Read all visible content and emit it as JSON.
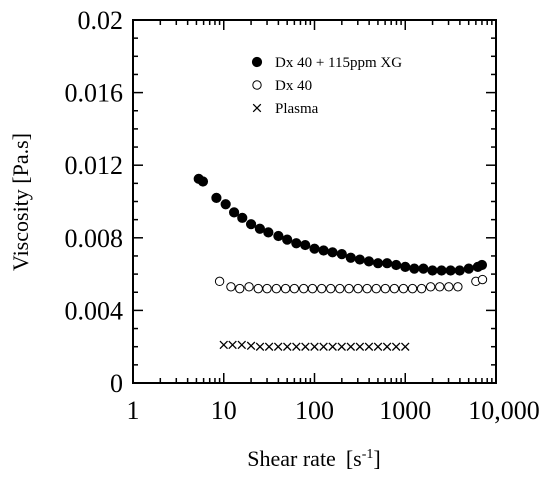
{
  "chart_data": {
    "type": "scatter",
    "xlabel": "Shear rate",
    "xunit_open": "[s",
    "xunit_sup": "-1",
    "xunit_close": "]",
    "ylabel": "Viscosity [Pa.s]",
    "xscale": "log",
    "xlim": [
      1,
      10000
    ],
    "ylim": [
      0,
      0.02
    ],
    "x_ticks": [
      1,
      10,
      100,
      1000,
      10000
    ],
    "x_tick_labels": [
      "1",
      "10",
      "100",
      "1000",
      "10,000"
    ],
    "y_ticks": [
      0,
      0.004,
      0.008,
      0.012,
      0.016,
      0.02
    ],
    "y_tick_labels": [
      "0",
      "0.004",
      "0.008",
      "0.012",
      "0.016",
      "0.02"
    ],
    "grid": false,
    "legend_position": "top-right",
    "series": [
      {
        "name": "Dx 40 + 115ppm XG",
        "marker": "filled-circle",
        "color": "#000000",
        "points": [
          [
            5.3,
            0.01125
          ],
          [
            5.9,
            0.0111
          ],
          [
            8.3,
            0.0102
          ],
          [
            10.5,
            0.00985
          ],
          [
            13.0,
            0.0094
          ],
          [
            16.0,
            0.0091
          ],
          [
            20.0,
            0.00875
          ],
          [
            25.0,
            0.0085
          ],
          [
            31.0,
            0.0083
          ],
          [
            40.0,
            0.0081
          ],
          [
            50.0,
            0.0079
          ],
          [
            63.0,
            0.0077
          ],
          [
            79.0,
            0.0076
          ],
          [
            100.0,
            0.0074
          ],
          [
            126.0,
            0.0073
          ],
          [
            158.0,
            0.0072
          ],
          [
            200.0,
            0.0071
          ],
          [
            251.0,
            0.0069
          ],
          [
            316.0,
            0.0068
          ],
          [
            398.0,
            0.0067
          ],
          [
            501.0,
            0.0066
          ],
          [
            631.0,
            0.0066
          ],
          [
            794.0,
            0.0065
          ],
          [
            1000.0,
            0.0064
          ],
          [
            1259.0,
            0.0063
          ],
          [
            1585.0,
            0.0063
          ],
          [
            1995.0,
            0.0062
          ],
          [
            2512.0,
            0.0062
          ],
          [
            3162.0,
            0.0062
          ],
          [
            3981.0,
            0.0062
          ],
          [
            5012.0,
            0.0063
          ],
          [
            6310.0,
            0.0064
          ],
          [
            7000.0,
            0.0065
          ]
        ]
      },
      {
        "name": "Dx 40",
        "marker": "open-circle",
        "color": "#000000",
        "points": [
          [
            9.0,
            0.0056
          ],
          [
            12.0,
            0.0053
          ],
          [
            15.0,
            0.0052
          ],
          [
            19.0,
            0.0053
          ],
          [
            24.0,
            0.0052
          ],
          [
            30.0,
            0.0052
          ],
          [
            38.0,
            0.0052
          ],
          [
            48.0,
            0.0052
          ],
          [
            60.0,
            0.0052
          ],
          [
            76.0,
            0.0052
          ],
          [
            95.0,
            0.0052
          ],
          [
            120.0,
            0.0052
          ],
          [
            151.0,
            0.0052
          ],
          [
            190.0,
            0.0052
          ],
          [
            240.0,
            0.0052
          ],
          [
            302.0,
            0.0052
          ],
          [
            380.0,
            0.0052
          ],
          [
            479.0,
            0.0052
          ],
          [
            603.0,
            0.0052
          ],
          [
            759.0,
            0.0052
          ],
          [
            955.0,
            0.0052
          ],
          [
            1202.0,
            0.0052
          ],
          [
            1514.0,
            0.0052
          ],
          [
            1905.0,
            0.0053
          ],
          [
            2399.0,
            0.0053
          ],
          [
            3020.0,
            0.0053
          ],
          [
            3802.0,
            0.0053
          ],
          [
            6000.0,
            0.0056
          ],
          [
            7100.0,
            0.0057
          ]
        ]
      },
      {
        "name": "Plasma",
        "marker": "cross",
        "color": "#000000",
        "points": [
          [
            10.0,
            0.0021
          ],
          [
            12.5,
            0.0021
          ],
          [
            15.8,
            0.0021
          ],
          [
            20.0,
            0.00205
          ],
          [
            25.1,
            0.002
          ],
          [
            31.6,
            0.002
          ],
          [
            39.8,
            0.002
          ],
          [
            50.1,
            0.002
          ],
          [
            63.1,
            0.002
          ],
          [
            79.4,
            0.002
          ],
          [
            100.0,
            0.002
          ],
          [
            125.9,
            0.002
          ],
          [
            158.5,
            0.002
          ],
          [
            199.5,
            0.002
          ],
          [
            251.2,
            0.002
          ],
          [
            316.2,
            0.002
          ],
          [
            398.1,
            0.002
          ],
          [
            501.2,
            0.002
          ],
          [
            631.0,
            0.002
          ],
          [
            794.3,
            0.002
          ],
          [
            1000.0,
            0.002
          ]
        ]
      }
    ]
  }
}
